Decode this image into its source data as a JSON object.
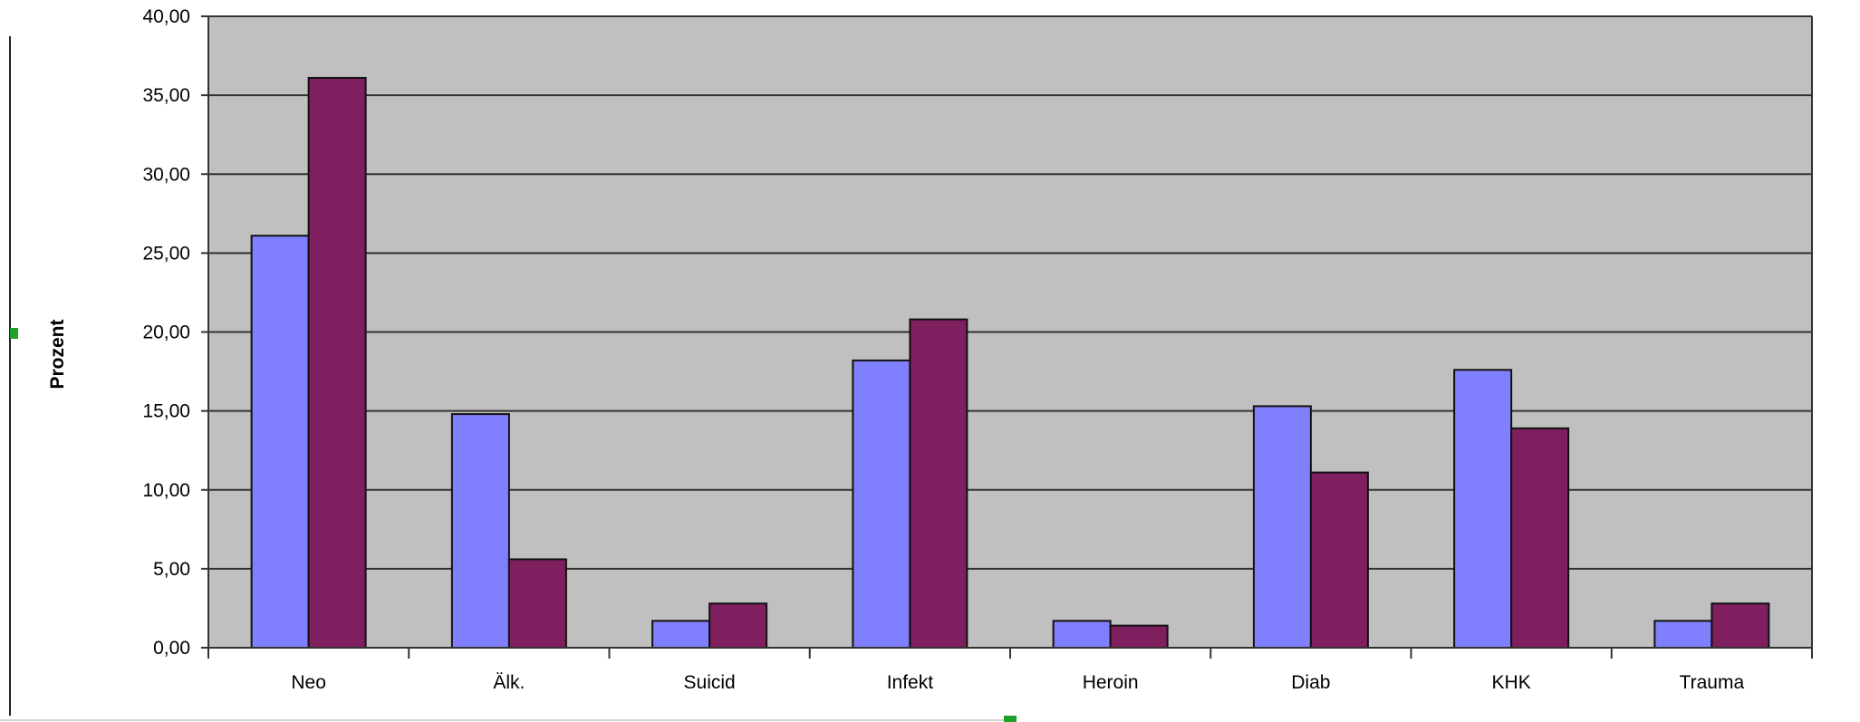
{
  "chart_data": {
    "type": "bar",
    "title": "",
    "xlabel": "",
    "ylabel": "Prozent",
    "categories": [
      "Neo",
      "Älk.",
      "Suicid",
      "Infekt",
      "Heroin",
      "Diab",
      "KHK",
      "Trauma"
    ],
    "series": [
      {
        "values": [
          26.1,
          14.8,
          1.7,
          18.2,
          1.7,
          15.3,
          17.6,
          1.7
        ]
      },
      {
        "values": [
          36.1,
          5.6,
          2.8,
          20.8,
          1.4,
          11.1,
          13.9,
          2.8
        ]
      }
    ],
    "y_tick_labels": [
      "0,00",
      "5,00",
      "10,00",
      "15,00",
      "20,00",
      "25,00",
      "30,00",
      "35,00",
      "40,00"
    ],
    "ylim": [
      0,
      40
    ],
    "grid": true,
    "legend": "none",
    "colors": {
      "series": [
        "#8080ff",
        "#7f1f5f"
      ],
      "plot_background": "#c0c0c0",
      "gridline": "#333333"
    }
  }
}
